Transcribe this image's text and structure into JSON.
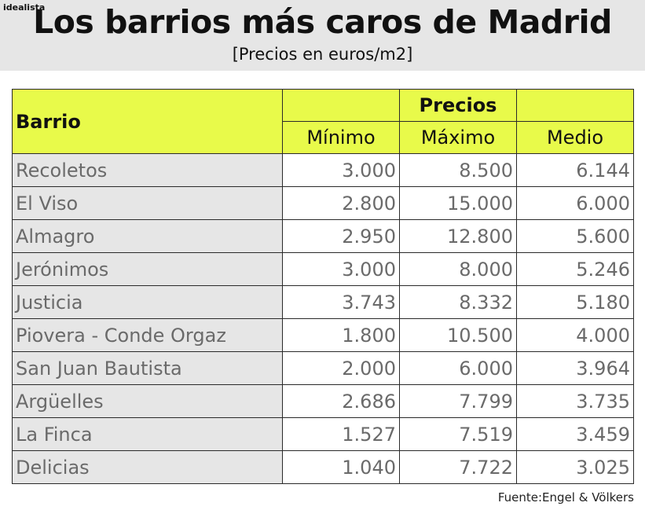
{
  "brand": "idealista",
  "title": "Los barrios más caros de Madrid",
  "subtitle": "[Precios en euros/m2]",
  "source": "Fuente:Engel & Völkers",
  "colors": {
    "header_background": "#e6e6e6",
    "table_header_highlight": "#e8fa4a",
    "first_column_background": "#e6e6e6",
    "value_text": "#6a6a6a"
  },
  "chart_data": {
    "type": "table",
    "title": "Los barrios más caros de Madrid",
    "subtitle": "[Precios en euros/m2]",
    "group_header": "Precios",
    "columns": [
      "Barrio",
      "Mínimo",
      "Máximo",
      "Medio"
    ],
    "rows": [
      [
        "Recoletos",
        "3.000",
        "8.500",
        "6.144"
      ],
      [
        "El Viso",
        "2.800",
        "15.000",
        "6.000"
      ],
      [
        "Almagro",
        "2.950",
        "12.800",
        "5.600"
      ],
      [
        "Jerónimos",
        "3.000",
        "8.000",
        "5.246"
      ],
      [
        "Justicia",
        "3.743",
        "8.332",
        "5.180"
      ],
      [
        "Piovera - Conde Orgaz",
        "1.800",
        "10.500",
        "4.000"
      ],
      [
        "San Juan Bautista",
        "2.000",
        "6.000",
        "3.964"
      ],
      [
        "Argüelles",
        "2.686",
        "7.799",
        "3.735"
      ],
      [
        "La Finca",
        "1.527",
        "7.519",
        "3.459"
      ],
      [
        "Delicias",
        "1.040",
        "7.722",
        "3.025"
      ]
    ]
  }
}
